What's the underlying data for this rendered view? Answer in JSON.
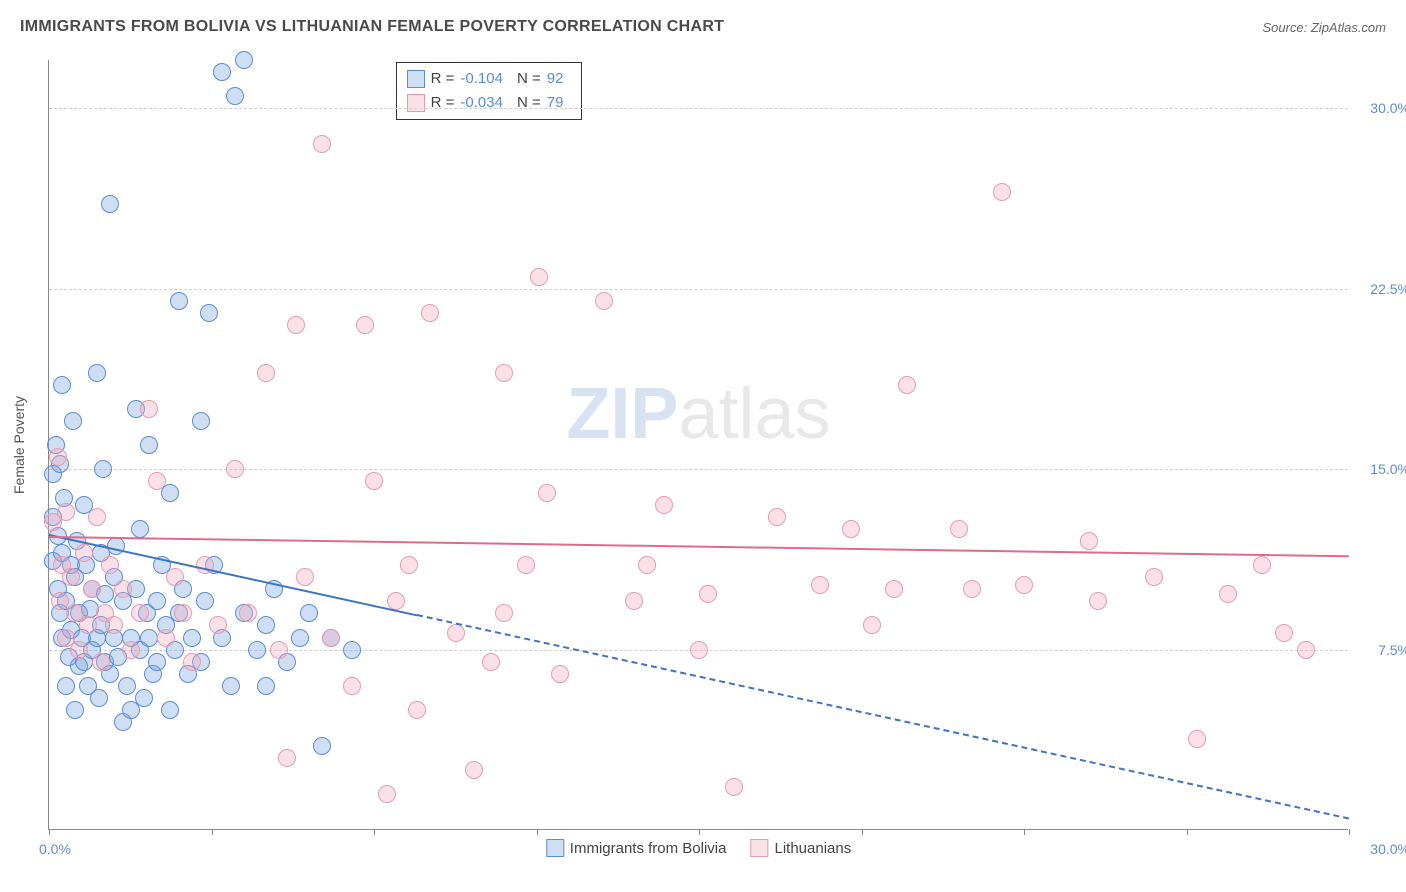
{
  "title": "IMMIGRANTS FROM BOLIVIA VS LITHUANIAN FEMALE POVERTY CORRELATION CHART",
  "source_prefix": "Source: ",
  "source_name": "ZipAtlas.com",
  "y_axis_title": "Female Poverty",
  "watermark": {
    "part1": "ZIP",
    "part2": "atlas"
  },
  "chart": {
    "type": "scatter",
    "background_color": "#ffffff",
    "grid_color": "#d0d0d0",
    "axis_color": "#888888",
    "xlim": [
      0,
      30
    ],
    "ylim": [
      0,
      32
    ],
    "x_ticks": [
      0,
      3.75,
      7.5,
      11.25,
      15,
      18.75,
      22.5,
      26.25,
      30
    ],
    "y_gridlines": [
      7.5,
      15.0,
      22.5,
      30.0
    ],
    "y_tick_labels": [
      "7.5%",
      "15.0%",
      "22.5%",
      "30.0%"
    ],
    "x_min_label": "0.0%",
    "x_max_label": "30.0%",
    "tick_label_color": "#5b8dd6",
    "tick_label_fontsize": 14,
    "marker_radius": 9,
    "marker_fill_opacity": 0.35,
    "marker_stroke_width": 1.2,
    "series": [
      {
        "name": "Immigrants from Bolivia",
        "color_stroke": "#5b8dd6",
        "color_fill": "rgba(120,160,220,0.35)",
        "R": "-0.104",
        "N": "92",
        "trend": {
          "x1": 0,
          "y1": 12.3,
          "x_solid_end": 8.5,
          "x2": 30,
          "y2": 0.5,
          "color": "#3f73c4"
        },
        "points": [
          [
            0.1,
            14.8
          ],
          [
            0.1,
            13.0
          ],
          [
            0.1,
            11.2
          ],
          [
            0.15,
            16.0
          ],
          [
            0.2,
            10.0
          ],
          [
            0.2,
            12.2
          ],
          [
            0.25,
            9.0
          ],
          [
            0.25,
            15.2
          ],
          [
            0.3,
            18.5
          ],
          [
            0.3,
            8.0
          ],
          [
            0.3,
            11.5
          ],
          [
            0.35,
            13.8
          ],
          [
            0.4,
            6.0
          ],
          [
            0.4,
            9.5
          ],
          [
            0.45,
            7.2
          ],
          [
            0.5,
            11.0
          ],
          [
            0.5,
            8.3
          ],
          [
            0.55,
            17.0
          ],
          [
            0.6,
            5.0
          ],
          [
            0.6,
            10.5
          ],
          [
            0.65,
            12.0
          ],
          [
            0.7,
            6.8
          ],
          [
            0.7,
            9.0
          ],
          [
            0.75,
            8.0
          ],
          [
            0.8,
            7.0
          ],
          [
            0.8,
            13.5
          ],
          [
            0.85,
            11.0
          ],
          [
            0.9,
            6.0
          ],
          [
            0.95,
            9.2
          ],
          [
            1.0,
            7.5
          ],
          [
            1.0,
            10.0
          ],
          [
            1.1,
            8.0
          ],
          [
            1.1,
            19.0
          ],
          [
            1.15,
            5.5
          ],
          [
            1.2,
            11.5
          ],
          [
            1.2,
            8.5
          ],
          [
            1.25,
            15.0
          ],
          [
            1.3,
            7.0
          ],
          [
            1.3,
            9.8
          ],
          [
            1.4,
            6.5
          ],
          [
            1.4,
            26.0
          ],
          [
            1.5,
            8.0
          ],
          [
            1.5,
            10.5
          ],
          [
            1.55,
            11.8
          ],
          [
            1.6,
            7.2
          ],
          [
            1.7,
            4.5
          ],
          [
            1.7,
            9.5
          ],
          [
            1.8,
            6.0
          ],
          [
            1.9,
            8.0
          ],
          [
            1.9,
            5.0
          ],
          [
            2.0,
            17.5
          ],
          [
            2.0,
            10.0
          ],
          [
            2.1,
            7.5
          ],
          [
            2.1,
            12.5
          ],
          [
            2.2,
            5.5
          ],
          [
            2.25,
            9.0
          ],
          [
            2.3,
            8.0
          ],
          [
            2.3,
            16.0
          ],
          [
            2.4,
            6.5
          ],
          [
            2.5,
            9.5
          ],
          [
            2.5,
            7.0
          ],
          [
            2.6,
            11.0
          ],
          [
            2.7,
            8.5
          ],
          [
            2.8,
            5.0
          ],
          [
            2.8,
            14.0
          ],
          [
            2.9,
            7.5
          ],
          [
            3.0,
            9.0
          ],
          [
            3.0,
            22.0
          ],
          [
            3.1,
            10.0
          ],
          [
            3.2,
            6.5
          ],
          [
            3.3,
            8.0
          ],
          [
            3.5,
            17.0
          ],
          [
            3.5,
            7.0
          ],
          [
            3.6,
            9.5
          ],
          [
            3.7,
            21.5
          ],
          [
            3.8,
            11.0
          ],
          [
            4.0,
            8.0
          ],
          [
            4.0,
            31.5
          ],
          [
            4.2,
            6.0
          ],
          [
            4.3,
            30.5
          ],
          [
            4.5,
            9.0
          ],
          [
            4.5,
            32.0
          ],
          [
            4.8,
            7.5
          ],
          [
            5.0,
            8.5
          ],
          [
            5.0,
            6.0
          ],
          [
            5.2,
            10.0
          ],
          [
            5.5,
            7.0
          ],
          [
            5.8,
            8.0
          ],
          [
            6.0,
            9.0
          ],
          [
            6.3,
            3.5
          ],
          [
            6.5,
            8.0
          ],
          [
            7.0,
            7.5
          ]
        ]
      },
      {
        "name": "Lithuanians",
        "color_stroke": "#e89bb0",
        "color_fill": "rgba(240,170,190,0.35)",
        "R": "-0.034",
        "N": "79",
        "trend": {
          "x1": 0,
          "y1": 12.2,
          "x_solid_end": 30,
          "x2": 30,
          "y2": 11.4,
          "color": "#e06a8a"
        },
        "points": [
          [
            0.1,
            12.8
          ],
          [
            0.2,
            15.5
          ],
          [
            0.25,
            9.5
          ],
          [
            0.3,
            11.0
          ],
          [
            0.4,
            13.2
          ],
          [
            0.4,
            8.0
          ],
          [
            0.5,
            10.5
          ],
          [
            0.6,
            9.0
          ],
          [
            0.7,
            7.5
          ],
          [
            0.8,
            11.5
          ],
          [
            0.9,
            8.5
          ],
          [
            1.0,
            10.0
          ],
          [
            1.1,
            13.0
          ],
          [
            1.2,
            7.0
          ],
          [
            1.3,
            9.0
          ],
          [
            1.4,
            11.0
          ],
          [
            1.5,
            8.5
          ],
          [
            1.7,
            10.0
          ],
          [
            1.9,
            7.5
          ],
          [
            2.1,
            9.0
          ],
          [
            2.3,
            17.5
          ],
          [
            2.5,
            14.5
          ],
          [
            2.7,
            8.0
          ],
          [
            2.9,
            10.5
          ],
          [
            3.1,
            9.0
          ],
          [
            3.3,
            7.0
          ],
          [
            3.6,
            11.0
          ],
          [
            3.9,
            8.5
          ],
          [
            4.3,
            15.0
          ],
          [
            4.6,
            9.0
          ],
          [
            5.0,
            19.0
          ],
          [
            5.3,
            7.5
          ],
          [
            5.5,
            3.0
          ],
          [
            5.7,
            21.0
          ],
          [
            5.9,
            10.5
          ],
          [
            6.3,
            28.5
          ],
          [
            6.5,
            8.0
          ],
          [
            7.0,
            6.0
          ],
          [
            7.3,
            21.0
          ],
          [
            7.5,
            14.5
          ],
          [
            7.8,
            1.5
          ],
          [
            8.0,
            9.5
          ],
          [
            8.3,
            11.0
          ],
          [
            8.5,
            5.0
          ],
          [
            8.8,
            21.5
          ],
          [
            9.4,
            8.2
          ],
          [
            9.8,
            2.5
          ],
          [
            10.2,
            7.0
          ],
          [
            10.5,
            9.0
          ],
          [
            10.5,
            19.0
          ],
          [
            11.0,
            11.0
          ],
          [
            11.3,
            23.0
          ],
          [
            11.5,
            14.0
          ],
          [
            11.8,
            6.5
          ],
          [
            12.8,
            22.0
          ],
          [
            13.5,
            9.5
          ],
          [
            13.8,
            11.0
          ],
          [
            14.2,
            13.5
          ],
          [
            15.0,
            7.5
          ],
          [
            15.2,
            9.8
          ],
          [
            15.8,
            1.8
          ],
          [
            16.8,
            13.0
          ],
          [
            17.8,
            10.2
          ],
          [
            18.5,
            12.5
          ],
          [
            19.0,
            8.5
          ],
          [
            19.5,
            10.0
          ],
          [
            19.8,
            18.5
          ],
          [
            21.0,
            12.5
          ],
          [
            21.3,
            10.0
          ],
          [
            22.0,
            26.5
          ],
          [
            22.5,
            10.2
          ],
          [
            24.0,
            12.0
          ],
          [
            24.2,
            9.5
          ],
          [
            25.5,
            10.5
          ],
          [
            26.5,
            3.8
          ],
          [
            27.2,
            9.8
          ],
          [
            28.0,
            11.0
          ],
          [
            28.5,
            8.2
          ],
          [
            29.0,
            7.5
          ]
        ]
      }
    ]
  },
  "legend_top": {
    "R_label": "R =",
    "N_label": "N ="
  },
  "legend_bottom_labels": [
    "Immigrants from Bolivia",
    "Lithuanians"
  ]
}
